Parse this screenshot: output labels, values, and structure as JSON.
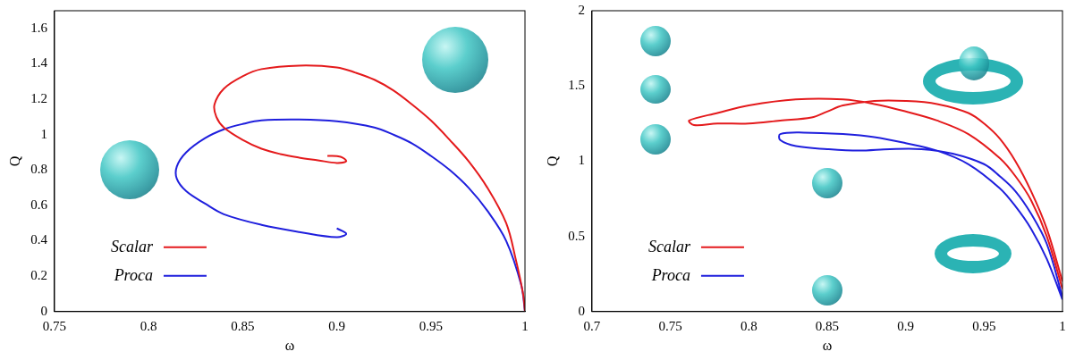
{
  "chart_data": [
    {
      "type": "line",
      "x_label": "ω",
      "y_label": "Q",
      "xlim": [
        0.75,
        1
      ],
      "xticks": [
        0.75,
        0.8,
        0.85,
        0.9,
        0.95,
        1
      ],
      "ylim": [
        0,
        1.7
      ],
      "yticks": [
        0,
        0.2,
        0.4,
        0.6,
        0.8,
        1,
        1.2,
        1.4,
        1.6
      ],
      "grid": false,
      "legend": "lower left",
      "series": [
        {
          "name": "Scalar",
          "color": "#e41a1c",
          "x": [
            1,
            0.999,
            0.995,
            0.99,
            0.98,
            0.97,
            0.96,
            0.95,
            0.94,
            0.93,
            0.92,
            0.91,
            0.9,
            0.88,
            0.86,
            0.85,
            0.84,
            0.835,
            0.836,
            0.84,
            0.85,
            0.86,
            0.87,
            0.88,
            0.89,
            0.9,
            0.905,
            0.902,
            0.895
          ],
          "values": [
            0,
            0.1,
            0.3,
            0.5,
            0.7,
            0.85,
            0.97,
            1.08,
            1.17,
            1.25,
            1.31,
            1.35,
            1.38,
            1.39,
            1.37,
            1.33,
            1.26,
            1.17,
            1.1,
            1.04,
            0.97,
            0.92,
            0.89,
            0.87,
            0.855,
            0.84,
            0.85,
            0.875,
            0.88
          ]
        },
        {
          "name": "Proca",
          "color": "#1f1fdd",
          "x": [
            1,
            0.998,
            0.99,
            0.98,
            0.97,
            0.96,
            0.95,
            0.94,
            0.93,
            0.92,
            0.9,
            0.88,
            0.86,
            0.85,
            0.84,
            0.83,
            0.82,
            0.815,
            0.815,
            0.82,
            0.83,
            0.84,
            0.86,
            0.88,
            0.9,
            0.905,
            0.9
          ],
          "values": [
            0,
            0.15,
            0.4,
            0.57,
            0.7,
            0.8,
            0.88,
            0.95,
            1.0,
            1.04,
            1.075,
            1.085,
            1.08,
            1.06,
            1.03,
            0.98,
            0.9,
            0.82,
            0.75,
            0.68,
            0.61,
            0.55,
            0.49,
            0.45,
            0.42,
            0.44,
            0.47
          ]
        }
      ]
    },
    {
      "type": "line",
      "x_label": "ω",
      "y_label": "Q",
      "xlim": [
        0.7,
        1
      ],
      "xticks": [
        0.7,
        0.75,
        0.8,
        0.85,
        0.9,
        0.95,
        1
      ],
      "ylim": [
        0,
        2
      ],
      "yticks": [
        0,
        0.5,
        1,
        1.5,
        2
      ],
      "grid": false,
      "legend": "lower left",
      "series": [
        {
          "name": "Scalar",
          "color": "#e41a1c",
          "x": [
            1,
            0.99,
            0.98,
            0.97,
            0.96,
            0.95,
            0.94,
            0.92,
            0.9,
            0.88,
            0.86,
            0.85,
            0.84,
            0.82,
            0.8,
            0.78,
            0.765,
            0.762,
            0.78,
            0.8,
            0.83,
            0.86,
            0.88,
            0.9,
            0.92,
            0.94,
            0.96,
            0.97,
            0.98,
            0.99,
            1
          ],
          "values": [
            0.2,
            0.55,
            0.8,
            1.0,
            1.15,
            1.25,
            1.32,
            1.38,
            1.4,
            1.4,
            1.37,
            1.33,
            1.29,
            1.27,
            1.25,
            1.25,
            1.24,
            1.27,
            1.32,
            1.37,
            1.41,
            1.41,
            1.38,
            1.33,
            1.27,
            1.18,
            1.02,
            0.9,
            0.74,
            0.5,
            0.15
          ]
        },
        {
          "name": "Proca",
          "color": "#1f1fdd",
          "x": [
            1,
            0.99,
            0.98,
            0.97,
            0.96,
            0.95,
            0.93,
            0.91,
            0.89,
            0.87,
            0.85,
            0.83,
            0.82,
            0.82,
            0.835,
            0.86,
            0.88,
            0.9,
            0.92,
            0.94,
            0.96,
            0.97,
            0.98,
            0.99,
            1
          ],
          "values": [
            0.1,
            0.45,
            0.65,
            0.8,
            0.9,
            0.98,
            1.05,
            1.08,
            1.08,
            1.07,
            1.08,
            1.1,
            1.14,
            1.18,
            1.19,
            1.18,
            1.16,
            1.12,
            1.07,
            0.98,
            0.82,
            0.7,
            0.55,
            0.35,
            0.08
          ]
        }
      ]
    }
  ]
}
